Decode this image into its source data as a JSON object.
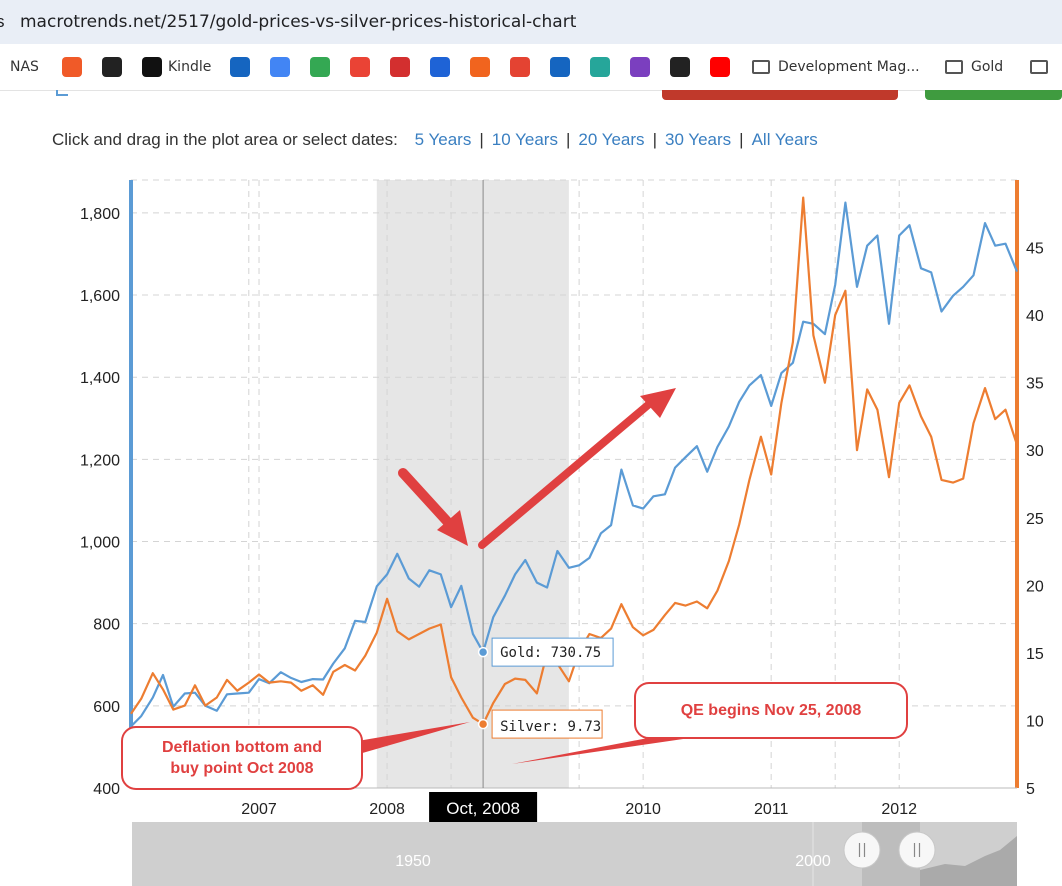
{
  "browser": {
    "url": "macrotrends.net/2517/gold-prices-vs-silver-prices-historical-chart",
    "bookmarks": [
      {
        "label": "NAS",
        "icon": "nas-bookmark",
        "color": ""
      },
      {
        "label": "",
        "icon": "bookmark-red-icon",
        "color": "#f05a28"
      },
      {
        "label": "",
        "icon": "github-icon",
        "color": "#222222"
      },
      {
        "label": "Kindle",
        "icon": "kindle-icon",
        "color": "#111111"
      },
      {
        "label": "",
        "icon": "mail-icon",
        "color": "#1565c0"
      },
      {
        "label": "",
        "icon": "google-icon",
        "color": "#4285f4"
      },
      {
        "label": "",
        "icon": "drive-icon",
        "color": "#34a853"
      },
      {
        "label": "",
        "icon": "maps-icon",
        "color": "#ea4335"
      },
      {
        "label": "",
        "icon": "house-icon",
        "color": "#d32f2f"
      },
      {
        "label": "",
        "icon": "zillow-icon",
        "color": "#1e63d6"
      },
      {
        "label": "",
        "icon": "etsy-icon",
        "color": "#f1641e"
      },
      {
        "label": "",
        "icon": "todoist-icon",
        "color": "#e44332"
      },
      {
        "label": "",
        "icon": "flag-icon",
        "color": "#1565c0"
      },
      {
        "label": "",
        "icon": "spiral-icon",
        "color": "#26a69a"
      },
      {
        "label": "",
        "icon": "bag-icon",
        "color": "#7b3fbf"
      },
      {
        "label": "",
        "icon": "amazon-icon",
        "color": "#222222"
      },
      {
        "label": "",
        "icon": "youtube-icon",
        "color": "#ff0000"
      },
      {
        "label": "Development Mag...",
        "icon": "folder-icon",
        "color": ""
      },
      {
        "label": "Gold",
        "icon": "folder-icon",
        "color": ""
      },
      {
        "label": "",
        "icon": "folder-icon",
        "color": ""
      }
    ]
  },
  "range_selector": {
    "prompt": "Click and drag in the plot area or select dates:",
    "options": [
      "5 Years",
      "10 Years",
      "20 Years",
      "30 Years",
      "All Years"
    ]
  },
  "colors": {
    "gold": "#5b9bd5",
    "silver": "#ed7d31",
    "annotation": "#e04040"
  },
  "chart_data": {
    "type": "line",
    "x_unit": "year (decimal)",
    "x_ticks": [
      "2007",
      "2008",
      "2010",
      "2011",
      "2012"
    ],
    "x_tick_values": [
      2007,
      2008,
      2010,
      2011,
      2012
    ],
    "x_range": [
      2006,
      2012.92
    ],
    "highlight_range": [
      2007.92,
      2009.42
    ],
    "crosshair_x": 2008.75,
    "crosshair_label": "Oct, 2008",
    "y_left": {
      "ticks": [
        "400",
        "600",
        "800",
        "1,000",
        "1,200",
        "1,400",
        "1,600",
        "1,800"
      ],
      "tick_values": [
        400,
        600,
        800,
        1000,
        1200,
        1400,
        1600,
        1800
      ],
      "range": [
        400,
        1880
      ]
    },
    "y_right": {
      "ticks": [
        "5",
        "10",
        "15",
        "20",
        "25",
        "30",
        "35",
        "40",
        "45"
      ],
      "tick_values": [
        5,
        10,
        15,
        20,
        25,
        30,
        35,
        40,
        45
      ],
      "range": [
        5,
        50
      ]
    },
    "series": [
      {
        "name": "Gold",
        "axis": "left",
        "tooltip": "Gold: 730.75",
        "tooltip_x": 2008.75,
        "tooltip_value": 730.75,
        "points": [
          [
            2006.0,
            550
          ],
          [
            2006.08,
            575
          ],
          [
            2006.17,
            620
          ],
          [
            2006.25,
            675
          ],
          [
            2006.33,
            598
          ],
          [
            2006.42,
            630
          ],
          [
            2006.5,
            632
          ],
          [
            2006.58,
            600
          ],
          [
            2006.67,
            588
          ],
          [
            2006.75,
            628
          ],
          [
            2006.83,
            630
          ],
          [
            2006.92,
            632
          ],
          [
            2007.0,
            665
          ],
          [
            2007.08,
            655
          ],
          [
            2007.17,
            682
          ],
          [
            2007.25,
            668
          ],
          [
            2007.33,
            658
          ],
          [
            2007.42,
            665
          ],
          [
            2007.5,
            664
          ],
          [
            2007.58,
            703
          ],
          [
            2007.67,
            740
          ],
          [
            2007.75,
            807
          ],
          [
            2007.83,
            804
          ],
          [
            2007.92,
            891
          ],
          [
            2008.0,
            920
          ],
          [
            2008.08,
            970
          ],
          [
            2008.17,
            910
          ],
          [
            2008.25,
            890
          ],
          [
            2008.33,
            930
          ],
          [
            2008.42,
            920
          ],
          [
            2008.5,
            840
          ],
          [
            2008.58,
            892
          ],
          [
            2008.67,
            775
          ],
          [
            2008.75,
            730.75
          ],
          [
            2008.83,
            816
          ],
          [
            2008.92,
            868
          ],
          [
            2009.0,
            920
          ],
          [
            2009.08,
            955
          ],
          [
            2009.17,
            900
          ],
          [
            2009.25,
            888
          ],
          [
            2009.33,
            977
          ],
          [
            2009.42,
            936
          ],
          [
            2009.5,
            942
          ],
          [
            2009.58,
            960
          ],
          [
            2009.67,
            1020
          ],
          [
            2009.75,
            1040
          ],
          [
            2009.83,
            1175
          ],
          [
            2009.92,
            1088
          ],
          [
            2010.0,
            1080
          ],
          [
            2010.08,
            1110
          ],
          [
            2010.17,
            1115
          ],
          [
            2010.25,
            1180
          ],
          [
            2010.33,
            1205
          ],
          [
            2010.42,
            1232
          ],
          [
            2010.5,
            1170
          ],
          [
            2010.58,
            1230
          ],
          [
            2010.67,
            1280
          ],
          [
            2010.75,
            1340
          ],
          [
            2010.83,
            1380
          ],
          [
            2010.92,
            1405
          ],
          [
            2011.0,
            1330
          ],
          [
            2011.08,
            1410
          ],
          [
            2011.17,
            1435
          ],
          [
            2011.25,
            1535
          ],
          [
            2011.33,
            1530
          ],
          [
            2011.42,
            1505
          ],
          [
            2011.5,
            1625
          ],
          [
            2011.58,
            1825
          ],
          [
            2011.67,
            1620
          ],
          [
            2011.75,
            1720
          ],
          [
            2011.83,
            1745
          ],
          [
            2011.92,
            1530
          ],
          [
            2012.0,
            1745
          ],
          [
            2012.08,
            1770
          ],
          [
            2012.17,
            1665
          ],
          [
            2012.25,
            1655
          ],
          [
            2012.33,
            1560
          ],
          [
            2012.42,
            1598
          ],
          [
            2012.5,
            1620
          ],
          [
            2012.58,
            1648
          ],
          [
            2012.67,
            1775
          ],
          [
            2012.75,
            1720
          ],
          [
            2012.83,
            1725
          ],
          [
            2012.92,
            1657
          ]
        ]
      },
      {
        "name": "Silver",
        "axis": "right",
        "tooltip": "Silver: 9.73",
        "tooltip_x": 2008.75,
        "tooltip_value": 9.73,
        "points": [
          [
            2006.0,
            10.5
          ],
          [
            2006.08,
            11.6
          ],
          [
            2006.17,
            13.5
          ],
          [
            2006.25,
            12.3
          ],
          [
            2006.33,
            10.8
          ],
          [
            2006.42,
            11.1
          ],
          [
            2006.5,
            12.6
          ],
          [
            2006.58,
            11.1
          ],
          [
            2006.67,
            11.7
          ],
          [
            2006.75,
            13.0
          ],
          [
            2006.83,
            12.2
          ],
          [
            2006.92,
            12.8
          ],
          [
            2007.0,
            13.4
          ],
          [
            2007.08,
            12.8
          ],
          [
            2007.17,
            12.9
          ],
          [
            2007.25,
            12.8
          ],
          [
            2007.33,
            12.2
          ],
          [
            2007.42,
            12.6
          ],
          [
            2007.5,
            11.9
          ],
          [
            2007.58,
            13.6
          ],
          [
            2007.67,
            14.1
          ],
          [
            2007.75,
            13.7
          ],
          [
            2007.83,
            14.8
          ],
          [
            2007.92,
            16.5
          ],
          [
            2008.0,
            19.0
          ],
          [
            2008.08,
            16.6
          ],
          [
            2008.17,
            16.0
          ],
          [
            2008.25,
            16.4
          ],
          [
            2008.33,
            16.8
          ],
          [
            2008.42,
            17.1
          ],
          [
            2008.5,
            13.2
          ],
          [
            2008.58,
            11.7
          ],
          [
            2008.67,
            10.2
          ],
          [
            2008.75,
            9.73
          ],
          [
            2008.83,
            11.3
          ],
          [
            2008.92,
            12.7
          ],
          [
            2009.0,
            13.1
          ],
          [
            2009.08,
            13.0
          ],
          [
            2009.17,
            12.0
          ],
          [
            2009.25,
            15.0
          ],
          [
            2009.33,
            14.2
          ],
          [
            2009.42,
            12.9
          ],
          [
            2009.5,
            15.1
          ],
          [
            2009.58,
            16.4
          ],
          [
            2009.67,
            16.1
          ],
          [
            2009.75,
            16.8
          ],
          [
            2009.83,
            18.6
          ],
          [
            2009.92,
            16.9
          ],
          [
            2010.0,
            16.3
          ],
          [
            2010.08,
            16.7
          ],
          [
            2010.17,
            17.8
          ],
          [
            2010.25,
            18.7
          ],
          [
            2010.33,
            18.5
          ],
          [
            2010.42,
            18.8
          ],
          [
            2010.5,
            18.3
          ],
          [
            2010.58,
            19.6
          ],
          [
            2010.67,
            21.8
          ],
          [
            2010.75,
            24.5
          ],
          [
            2010.83,
            27.8
          ],
          [
            2010.92,
            31.0
          ],
          [
            2011.0,
            28.2
          ],
          [
            2011.08,
            33.5
          ],
          [
            2011.17,
            38.0
          ],
          [
            2011.25,
            48.7
          ],
          [
            2011.33,
            38.5
          ],
          [
            2011.42,
            35.0
          ],
          [
            2011.5,
            40.0
          ],
          [
            2011.58,
            41.8
          ],
          [
            2011.67,
            30.0
          ],
          [
            2011.75,
            34.5
          ],
          [
            2011.83,
            33.0
          ],
          [
            2011.92,
            28.0
          ],
          [
            2012.0,
            33.5
          ],
          [
            2012.08,
            34.8
          ],
          [
            2012.17,
            32.5
          ],
          [
            2012.25,
            31.0
          ],
          [
            2012.33,
            27.8
          ],
          [
            2012.42,
            27.6
          ],
          [
            2012.5,
            27.9
          ],
          [
            2012.58,
            32.0
          ],
          [
            2012.67,
            34.6
          ],
          [
            2012.75,
            32.3
          ],
          [
            2012.83,
            33.0
          ],
          [
            2012.92,
            30.4
          ]
        ]
      }
    ],
    "annotations": [
      {
        "text_lines": [
          "Deflation bottom and",
          "buy point Oct 2008"
        ]
      },
      {
        "text_lines": [
          "QE begins Nov 25, 2008"
        ]
      }
    ],
    "navigator": {
      "labels": [
        "1950",
        "2000"
      ]
    }
  }
}
